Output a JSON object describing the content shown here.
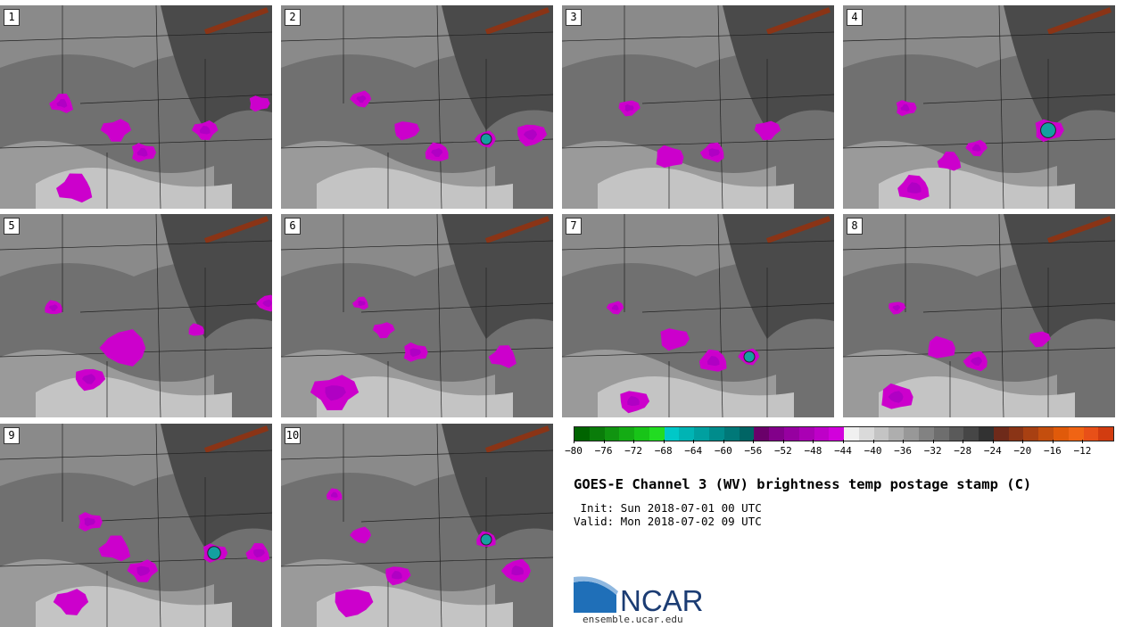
{
  "panels": [
    "1",
    "2",
    "3",
    "4",
    "5",
    "6",
    "7",
    "8",
    "9",
    "10"
  ],
  "colorbar": {
    "colors": [
      "#006400",
      "#0a7c0a",
      "#109410",
      "#14ac14",
      "#18c418",
      "#22dc22",
      "#00c8c8",
      "#00b4b4",
      "#00a0a0",
      "#008c8c",
      "#007878",
      "#006464",
      "#6a006a",
      "#82008a",
      "#9600a0",
      "#aa00b4",
      "#be00c8",
      "#d200dc",
      "#f0f0f0",
      "#dadada",
      "#c4c4c4",
      "#aeaeae",
      "#989898",
      "#828282",
      "#6e6e6e",
      "#5a5a5a",
      "#464646",
      "#323232",
      "#6e2a1a",
      "#8a3416",
      "#a84012",
      "#c44e0e",
      "#e05a0a",
      "#f06414",
      "#e85018",
      "#d23c10"
    ],
    "tick_labels": [
      "-80",
      "-76",
      "-72",
      "-68",
      "-64",
      "-60",
      "-56",
      "-52",
      "-48",
      "-44",
      "-40",
      "-36",
      "-32",
      "-28",
      "-24",
      "-20",
      "-16",
      "-12"
    ]
  },
  "title": "GOES-E Channel 3 (WV) brightness temp postage stamp (C)",
  "init": " Init: Sun 2018-07-01 00 UTC",
  "valid": "Valid: Mon 2018-07-02 09 UTC",
  "logo": {
    "wordmark": "NCAR",
    "url": "ensemble.ucar.edu"
  }
}
